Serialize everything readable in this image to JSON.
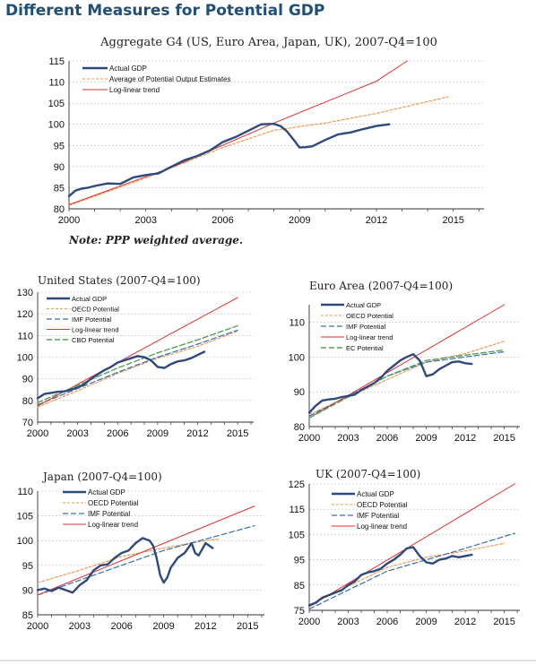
{
  "page_title": "Different Measures for Potential GDP",
  "colors": {
    "actual": "#2e4a7d",
    "oecd": "#f0964a",
    "imf": "#3a6fb0",
    "loglinear": "#e03030",
    "cbo": "#5aa05a",
    "ec": "#5aa05a",
    "average": "#f0964a",
    "grid": "#bdbdbd"
  },
  "chart_data": [
    {
      "id": "g4",
      "type": "line",
      "title": "Aggregate G4 (US, Euro Area, Japan, UK), 2007-Q4=100",
      "note": "Note: PPP weighted average.",
      "xlim": [
        2000,
        2016.2
      ],
      "ylim": [
        80,
        115
      ],
      "xticks": [
        2000,
        2003,
        2006,
        2009,
        2012,
        2015
      ],
      "yticks": [
        80,
        85,
        90,
        95,
        100,
        105,
        110,
        115
      ],
      "legend_position": "top-left",
      "series": [
        {
          "name": "Actual GDP",
          "style": "actual",
          "x": [
            2000,
            2000.25,
            2000.5,
            2000.75,
            2001,
            2001.5,
            2002,
            2002.5,
            2003,
            2003.5,
            2004,
            2004.5,
            2005,
            2005.5,
            2006,
            2006.5,
            2007,
            2007.5,
            2008,
            2008.25,
            2008.5,
            2008.75,
            2009,
            2009.25,
            2009.5,
            2010,
            2010.5,
            2011,
            2011.5,
            2012,
            2012.5
          ],
          "y": [
            83,
            84.3,
            84.8,
            85.0,
            85.4,
            86.0,
            85.9,
            87.4,
            88.0,
            88.4,
            90.0,
            91.5,
            92.5,
            93.8,
            95.8,
            97.0,
            98.5,
            100.0,
            100.1,
            99.6,
            98.4,
            96.5,
            94.5,
            94.6,
            94.8,
            96.3,
            97.6,
            98.1,
            98.9,
            99.6,
            100.0
          ]
        },
        {
          "name": "Average of Potential Output Estimates",
          "style": "average",
          "x": [
            2000,
            2003,
            2006,
            2008,
            2010,
            2012,
            2014.8
          ],
          "y": [
            80.8,
            87.3,
            94.5,
            98.6,
            100.3,
            102.6,
            106.5
          ]
        },
        {
          "name": "Log-linear trend",
          "style": "loglinear",
          "x": [
            2000,
            2004,
            2008,
            2012,
            2013.2
          ],
          "y": [
            81,
            89.8,
            100.3,
            110.2,
            115
          ]
        }
      ]
    },
    {
      "id": "us",
      "type": "line",
      "title": "United States (2007-Q4=100)",
      "xlim": [
        2000,
        2016.2
      ],
      "ylim": [
        70,
        130
      ],
      "xticks": [
        2000,
        2003,
        2006,
        2009,
        2012,
        2015
      ],
      "yticks": [
        70,
        80,
        90,
        100,
        110,
        120,
        130
      ],
      "legend_position": "top-left",
      "series": [
        {
          "name": "Actual GDP",
          "style": "actual",
          "x": [
            2000,
            2000.5,
            2001,
            2001.5,
            2002,
            2002.5,
            2003,
            2003.5,
            2004,
            2004.5,
            2005,
            2005.5,
            2006,
            2006.5,
            2007,
            2007.5,
            2008,
            2008.5,
            2009,
            2009.5,
            2010,
            2010.5,
            2011,
            2011.5,
            2012,
            2012.5
          ],
          "y": [
            81,
            83,
            83.5,
            84,
            84.2,
            85,
            86,
            87.5,
            90,
            92,
            94,
            95.5,
            97.5,
            98.5,
            99.5,
            100.5,
            100,
            98.5,
            95.5,
            95,
            96.8,
            98,
            98.5,
            99.5,
            101,
            102.5
          ]
        },
        {
          "name": "OECD Potential",
          "style": "oecd",
          "x": [
            2000,
            2003,
            2006,
            2009,
            2012,
            2015
          ],
          "y": [
            77,
            84.5,
            92.5,
            99.5,
            105,
            112
          ]
        },
        {
          "name": "IMF Potential",
          "style": "imf",
          "x": [
            2000,
            2003,
            2006,
            2009,
            2012,
            2015
          ],
          "y": [
            78,
            85.5,
            93,
            100,
            106,
            112.5
          ]
        },
        {
          "name": "Log-linear trend",
          "style": "loglinear",
          "x": [
            2000,
            2015
          ],
          "y": [
            77.5,
            127.5
          ]
        },
        {
          "name": "CBO Potential",
          "style": "cbo",
          "x": [
            2000,
            2003,
            2006,
            2009,
            2012,
            2015
          ],
          "y": [
            79,
            87,
            95,
            102,
            108,
            114.5
          ]
        }
      ]
    },
    {
      "id": "ea",
      "type": "line",
      "title": "Euro Area (2007-Q4=100)",
      "xlim": [
        2000,
        2016.2
      ],
      "ylim": [
        80,
        115
      ],
      "xticks": [
        2000,
        2003,
        2006,
        2009,
        2012,
        2015
      ],
      "yticks": [
        80,
        90,
        100,
        110
      ],
      "legend_position": "top-left",
      "series": [
        {
          "name": "Actual GDP",
          "style": "actual",
          "x": [
            2000,
            2000.5,
            2001,
            2001.5,
            2002,
            2002.5,
            2003,
            2003.5,
            2004,
            2004.5,
            2005,
            2005.5,
            2006,
            2006.5,
            2007,
            2007.5,
            2008,
            2008.5,
            2009,
            2009.5,
            2010,
            2010.5,
            2011,
            2011.5,
            2012,
            2012.5
          ],
          "y": [
            84,
            86,
            87.5,
            87.8,
            88,
            88.5,
            88.8,
            89.2,
            90.5,
            91.5,
            92.5,
            94,
            96,
            97.5,
            99,
            100,
            100.8,
            99,
            94.5,
            95,
            96.5,
            97.5,
            98.5,
            98.7,
            98.2,
            98
          ]
        },
        {
          "name": "OECD Potential",
          "style": "oecd",
          "x": [
            2000,
            2003,
            2006,
            2009,
            2012,
            2015
          ],
          "y": [
            83.5,
            88.5,
            93.5,
            98.5,
            101,
            104.5
          ]
        },
        {
          "name": "IMF Potential",
          "style": "imf",
          "x": [
            2000,
            2003,
            2006,
            2009,
            2012,
            2015
          ],
          "y": [
            83,
            88.8,
            94.5,
            98.5,
            100,
            101.5
          ]
        },
        {
          "name": "Log-linear trend",
          "style": "loglinear",
          "x": [
            2000,
            2015
          ],
          "y": [
            82.5,
            115
          ]
        },
        {
          "name": "EC Potential",
          "style": "ec",
          "x": [
            2000,
            2003,
            2006,
            2009,
            2012,
            2015
          ],
          "y": [
            82.5,
            88.5,
            94.5,
            99,
            100.5,
            102
          ]
        }
      ]
    },
    {
      "id": "jp",
      "type": "line",
      "title": "Japan (2007-Q4=100)",
      "xlim": [
        2000,
        2016.2
      ],
      "ylim": [
        85,
        110
      ],
      "xticks": [
        2000,
        2003,
        2006,
        2009,
        2012,
        2015
      ],
      "yticks": [
        85,
        90,
        95,
        100,
        105,
        110
      ],
      "legend_position": "top-left",
      "series": [
        {
          "name": "Actual GDP",
          "style": "actual",
          "x": [
            2000,
            2000.5,
            2001,
            2001.5,
            2002,
            2002.5,
            2003,
            2003.5,
            2004,
            2004.5,
            2005,
            2005.5,
            2006,
            2006.5,
            2007,
            2007.5,
            2008,
            2008.25,
            2008.5,
            2008.75,
            2009,
            2009.25,
            2009.5,
            2010,
            2010.5,
            2011,
            2011.25,
            2011.5,
            2012,
            2012.5
          ],
          "y": [
            90,
            90.3,
            89.8,
            90.5,
            90,
            89.5,
            91,
            92,
            94,
            95,
            95.2,
            96.5,
            97.5,
            98,
            99.5,
            100.5,
            100,
            99,
            96.5,
            93,
            91.5,
            92.5,
            94.5,
            96.5,
            97.5,
            99.5,
            97.5,
            97,
            99.5,
            98.5
          ]
        },
        {
          "name": "OECD Potential",
          "style": "oecd",
          "x": [
            2000,
            2003,
            2006,
            2009,
            2012,
            2013
          ],
          "y": [
            91.5,
            94,
            96.8,
            98.5,
            100,
            100.3
          ]
        },
        {
          "name": "IMF Potential",
          "style": "imf",
          "x": [
            2000,
            2003,
            2006,
            2009,
            2012,
            2015.5
          ],
          "y": [
            89,
            92,
            95,
            98,
            100.3,
            103
          ]
        },
        {
          "name": "Log-linear trend",
          "style": "loglinear",
          "x": [
            2000,
            2015.5
          ],
          "y": [
            89,
            107
          ]
        }
      ]
    },
    {
      "id": "uk",
      "type": "line",
      "title": "UK (2007-Q4=100)",
      "xlim": [
        2000,
        2016.2
      ],
      "ylim": [
        75,
        125
      ],
      "xticks": [
        2000,
        2003,
        2006,
        2009,
        2012,
        2015
      ],
      "yticks": [
        75,
        85,
        95,
        105,
        115,
        125
      ],
      "legend_position": "top-left",
      "series": [
        {
          "name": "Actual GDP",
          "style": "actual",
          "x": [
            2000,
            2000.5,
            2001,
            2001.5,
            2002,
            2002.5,
            2003,
            2003.5,
            2004,
            2004.5,
            2005,
            2005.5,
            2006,
            2006.5,
            2007,
            2007.5,
            2008,
            2008.5,
            2009,
            2009.5,
            2010,
            2010.5,
            2011,
            2011.5,
            2012,
            2012.5
          ],
          "y": [
            77,
            78,
            80,
            81,
            82,
            83,
            85,
            86.5,
            89,
            90,
            90.5,
            91.5,
            93.5,
            95,
            97,
            99.5,
            100,
            96.5,
            94,
            93.5,
            95,
            95.5,
            96.5,
            96,
            96.5,
            97
          ]
        },
        {
          "name": "OECD Potential",
          "style": "oecd",
          "x": [
            2000,
            2003,
            2006,
            2009,
            2012,
            2015
          ],
          "y": [
            77,
            84.5,
            92,
            96,
            98.5,
            101.5
          ]
        },
        {
          "name": "IMF Potential",
          "style": "imf",
          "x": [
            2000,
            2003,
            2006,
            2009,
            2012,
            2015.8
          ],
          "y": [
            75.5,
            83,
            90.5,
            95,
            99.5,
            105.5
          ]
        },
        {
          "name": "Log-linear trend",
          "style": "loglinear",
          "x": [
            2000,
            2015.8
          ],
          "y": [
            76.5,
            125
          ]
        }
      ]
    }
  ]
}
